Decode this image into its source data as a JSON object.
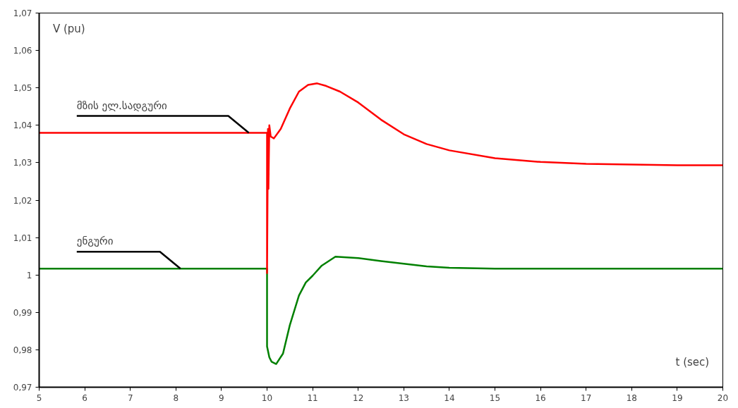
{
  "chart_data": {
    "type": "line",
    "xlabel": "t (sec)",
    "ylabel": "V (pu)",
    "xlim": [
      5,
      20
    ],
    "xticks": [
      5,
      6,
      7,
      8,
      9,
      10,
      11,
      12,
      13,
      14,
      15,
      16,
      17,
      18,
      19,
      20
    ],
    "ylim": [
      0.97,
      1.07
    ],
    "yticks": [
      {
        "value": 0.97,
        "label": "0,97"
      },
      {
        "value": 0.98,
        "label": "0,98"
      },
      {
        "value": 0.99,
        "label": "0,99"
      },
      1,
      {
        "value": 1.01,
        "label": "1,01"
      },
      {
        "value": 1.02,
        "label": "1,02"
      },
      {
        "value": 1.03,
        "label": "1,03"
      },
      {
        "value": 1.04,
        "label": "1,04"
      },
      {
        "value": 1.05,
        "label": "1,05"
      },
      {
        "value": 1.06,
        "label": "1,06"
      },
      {
        "value": 1.07,
        "label": "1,07"
      }
    ],
    "grid": false,
    "marker": "none",
    "line_style": "solid",
    "series": [
      {
        "name": "მზის ელ.სადგური",
        "color": "#ff0000",
        "x": [
          5,
          9.6,
          10,
          10,
          10.02,
          10.03,
          10.05,
          10.08,
          10.15,
          10.3,
          10.5,
          10.7,
          10.9,
          11.1,
          11.3,
          11.6,
          12,
          12.5,
          13,
          13.5,
          14,
          15,
          16,
          17,
          18,
          19,
          20
        ],
        "values": [
          1.038,
          1.038,
          1.038,
          1.0005,
          1.039,
          1.023,
          1.04,
          1.037,
          1.0365,
          1.039,
          1.0445,
          1.049,
          1.0508,
          1.0512,
          1.0505,
          1.049,
          1.0461,
          1.0415,
          1.0376,
          1.035,
          1.0333,
          1.0312,
          1.0302,
          1.0297,
          1.0295,
          1.0293,
          1.0293
        ]
      },
      {
        "name": "ენგური",
        "color": "#008000",
        "x": [
          5,
          8.1,
          10,
          10,
          10.05,
          10.1,
          10.2,
          10.35,
          10.5,
          10.7,
          10.85,
          11,
          11.2,
          11.5,
          12,
          12.5,
          13,
          13.5,
          14,
          15,
          20
        ],
        "values": [
          1.0017,
          1.0017,
          1.0017,
          0.9809,
          0.978,
          0.9768,
          0.9762,
          0.979,
          0.9866,
          0.9945,
          0.998,
          0.9998,
          1.0025,
          1.0049,
          1.0045,
          1.0037,
          1.003,
          1.0023,
          1.0019,
          1.0017,
          1.0017
        ]
      }
    ]
  }
}
